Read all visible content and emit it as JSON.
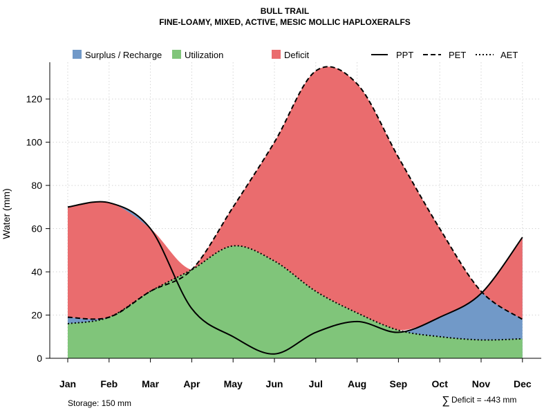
{
  "chart_data": {
    "type": "area",
    "title": "BULL TRAIL",
    "subtitle": "FINE-LOAMY, MIXED, ACTIVE, MESIC MOLLIC HAPLOXERALFS",
    "ylabel": "Water (mm)",
    "xlabel": "",
    "ylim": [
      0,
      137
    ],
    "yticks": [
      0,
      20,
      40,
      60,
      80,
      100,
      120
    ],
    "categories": [
      "Jan",
      "Feb",
      "Mar",
      "Apr",
      "May",
      "Jun",
      "Jul",
      "Aug",
      "Sep",
      "Oct",
      "Nov",
      "Dec"
    ],
    "grid": true,
    "legend_position": "top",
    "series": [
      {
        "name": "PPT",
        "style": "solid",
        "values": [
          70,
          72,
          60,
          23,
          10,
          2,
          12,
          17,
          12,
          19,
          30,
          56
        ]
      },
      {
        "name": "PET",
        "style": "dashed",
        "values": [
          19,
          19,
          31,
          41,
          70,
          100,
          133,
          127,
          93,
          60,
          31,
          18
        ]
      },
      {
        "name": "AET",
        "style": "dotted",
        "values": [
          16,
          19,
          31,
          41,
          52,
          45,
          31,
          21,
          13,
          10,
          8.5,
          9
        ]
      }
    ],
    "areas": [
      {
        "name": "Surplus / Recharge",
        "color": "#7199c8"
      },
      {
        "name": "Utilization",
        "color": "#80c57a"
      },
      {
        "name": "Deficit",
        "color": "#ea6c6e"
      }
    ],
    "annotations": {
      "storage": "Storage: 150 mm",
      "deficit_symbol": "∑",
      "deficit": "Deficit = -443 mm"
    }
  }
}
